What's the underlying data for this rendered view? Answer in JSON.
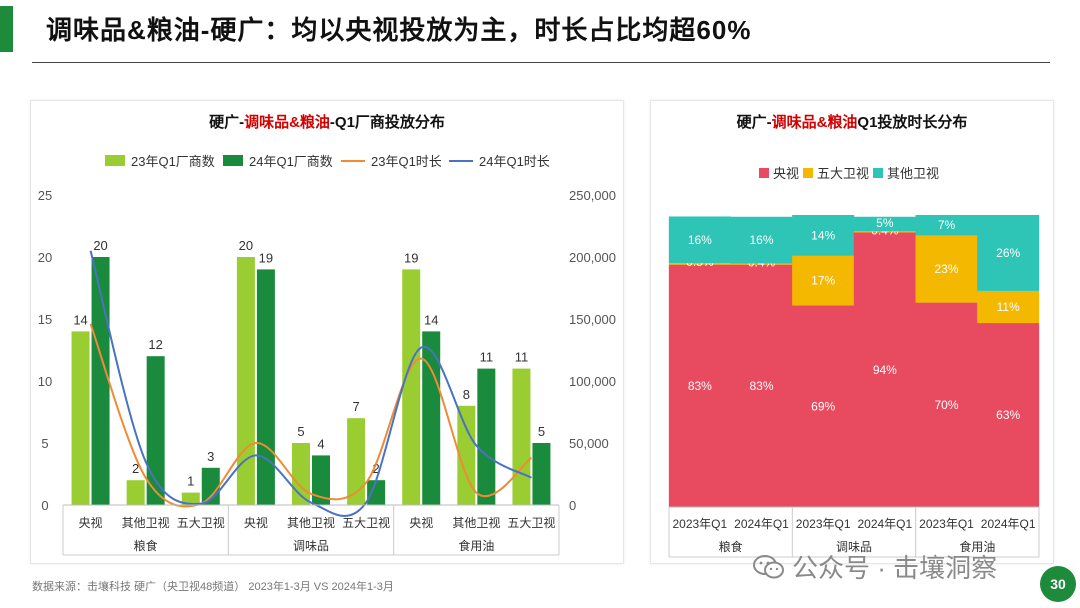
{
  "header": {
    "title": "调味品&粮油-硬广：均以央视投放为主，时长占比均超60%",
    "brand_color": "#1e8a3c"
  },
  "footer": {
    "source": "数据来源：击壤科技   硬广（央卫视48频道）  2023年1-3月 VS 2024年1-3月",
    "watermark": "公众号 · 击壤洞察",
    "page_number": "30"
  },
  "chart_data": [
    {
      "type": "bar",
      "id": "left",
      "title_prefix": "硬广-",
      "title_highlight": "调味品&粮油",
      "title_suffix": "-Q1厂商投放分布",
      "highlight_color": "#d40000",
      "groups": [
        "粮食",
        "调味品",
        "食用油"
      ],
      "categories": [
        "央视",
        "其他卫视",
        "五大卫视",
        "央视",
        "其他卫视",
        "五大卫视",
        "央视",
        "其他卫视",
        "五大卫视"
      ],
      "bar_series": [
        {
          "name": "23年Q1厂商数",
          "color": "#9acd32",
          "values": [
            14,
            2,
            1,
            20,
            5,
            7,
            19,
            8,
            11
          ]
        },
        {
          "name": "24年Q1厂商数",
          "color": "#1a8a3c",
          "values": [
            20,
            12,
            3,
            19,
            4,
            2,
            14,
            11,
            5
          ]
        }
      ],
      "line_series": [
        {
          "name": "23年Q1时长",
          "color": "#f08a35",
          "values": [
            146000,
            22000,
            1000,
            50000,
            9000,
            18000,
            118000,
            10000,
            38000
          ]
        },
        {
          "name": "24年Q1时长",
          "color": "#4a72c4",
          "values": [
            205000,
            35000,
            1000,
            40000,
            2000,
            2000,
            127000,
            48000,
            22000
          ]
        }
      ],
      "y_left": {
        "min": 0,
        "max": 25,
        "ticks": [
          "0",
          "5",
          "10",
          "15",
          "20",
          "25"
        ]
      },
      "y_right": {
        "min": 0,
        "max": 250000,
        "ticks": [
          "0",
          "50,000",
          "100,000",
          "150,000",
          "200,000",
          "250,000"
        ]
      }
    },
    {
      "type": "bar",
      "stacked": true,
      "id": "right",
      "title_prefix": "硬广-",
      "title_highlight": "调味品&粮油",
      "title_suffix": "Q1投放时长分布",
      "highlight_color": "#d40000",
      "groups": [
        "粮食",
        "调味品",
        "食用油"
      ],
      "categories": [
        "2023年Q1",
        "2024年Q1",
        "2023年Q1",
        "2024年Q1",
        "2023年Q1",
        "2024年Q1"
      ],
      "series": [
        {
          "name": "央视",
          "color": "#e84a5f",
          "values": [
            83,
            83,
            69,
            94,
            70,
            63
          ],
          "labels": [
            "83%",
            "83%",
            "69%",
            "94%",
            "70%",
            "63%"
          ]
        },
        {
          "name": "五大卫视",
          "color": "#f5b800",
          "values": [
            0.5,
            0.4,
            17,
            0.4,
            23,
            11
          ],
          "labels": [
            "0.5%",
            "0.4%",
            "17%",
            "0.4%",
            "23%",
            "11%"
          ]
        },
        {
          "name": "其他卫视",
          "color": "#2ec4b6",
          "values": [
            16,
            16,
            14,
            5,
            7,
            26
          ],
          "labels": [
            "16%",
            "16%",
            "14%",
            "5%",
            "7%",
            "26%"
          ]
        }
      ],
      "y_range": [
        0,
        100
      ]
    }
  ]
}
